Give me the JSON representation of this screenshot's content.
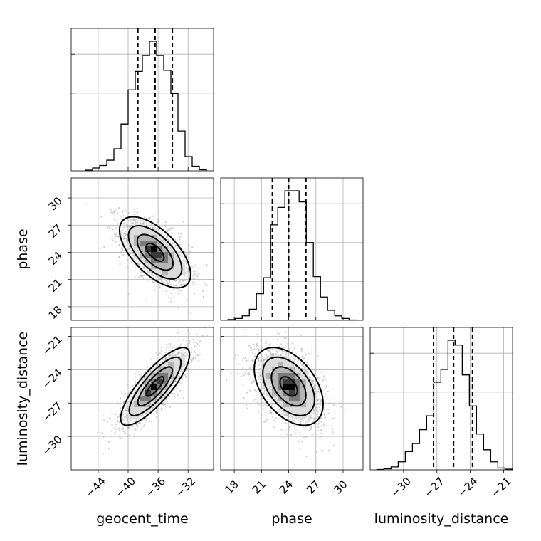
{
  "chart_data": {
    "type": "corner",
    "parameters": [
      "geocent_time",
      "phase",
      "luminosity_distance"
    ],
    "colors": {
      "line": "#000000",
      "grid": "#b0b0b0",
      "scatter": "#9a9a9a"
    },
    "grid": true,
    "ticks": {
      "geocent_time": [
        -44,
        -40,
        -36,
        -32
      ],
      "phase": [
        18,
        21,
        24,
        27,
        30
      ],
      "luminosity_distance": [
        -30,
        -27,
        -24,
        -21
      ]
    },
    "tick_labels": {
      "geocent_time": [
        "−44",
        "−40",
        "−36",
        "−32"
      ],
      "phase": [
        "18",
        "21",
        "24",
        "27",
        "30"
      ],
      "luminosity_distance": [
        "−30",
        "−27",
        "−24",
        "−21"
      ]
    },
    "ranges": {
      "geocent_time": [
        -47.6,
        -28.6
      ],
      "phase": [
        16.5,
        32.2
      ],
      "luminosity_distance": [
        -33.0,
        -20.2
      ]
    },
    "quantiles": {
      "geocent_time": [
        -38.7,
        -36.4,
        -34.1
      ],
      "phase": [
        22.2,
        24.0,
        25.9
      ],
      "luminosity_distance": [
        -27.3,
        -25.5,
        -23.8
      ]
    },
    "histograms": {
      "geocent_time": {
        "bin_edges": [
          -45.7,
          -44.75,
          -43.8,
          -42.85,
          -41.9,
          -40.95,
          -40.0,
          -39.05,
          -38.1,
          -37.15,
          -36.2,
          -35.25,
          -34.3,
          -33.35,
          -32.4,
          -31.45,
          -30.5,
          -29.55
        ],
        "counts": [
          2,
          8,
          15,
          30,
          62,
          132,
          228,
          280,
          325,
          365,
          325,
          283,
          218,
          112,
          40,
          13,
          3
        ]
      },
      "phase": {
        "bin_edges": [
          17.3,
          18.09,
          18.87,
          19.66,
          20.44,
          21.23,
          22.01,
          22.8,
          23.58,
          24.37,
          25.15,
          25.94,
          26.72,
          27.51,
          28.29,
          29.08,
          29.86,
          30.65,
          31.43
        ],
        "counts": [
          2,
          5,
          12,
          30,
          72,
          115,
          258,
          305,
          350,
          350,
          320,
          210,
          118,
          63,
          27,
          12,
          5,
          1
        ]
      },
      "luminosity_distance": {
        "bin_edges": [
          -32.4,
          -31.76,
          -31.12,
          -30.48,
          -29.84,
          -29.2,
          -28.56,
          -27.92,
          -27.28,
          -26.64,
          -26.0,
          -25.36,
          -24.72,
          -24.08,
          -23.44,
          -22.8,
          -22.16,
          -21.52,
          -20.88,
          -20.24
        ],
        "counts": [
          1,
          3,
          8,
          22,
          50,
          72,
          110,
          148,
          240,
          275,
          355,
          342,
          260,
          175,
          98,
          55,
          22,
          5,
          2
        ]
      }
    },
    "pairs": [
      {
        "x": "geocent_time",
        "y": "phase",
        "mean": [
          -36.4,
          24.0
        ],
        "std": [
          2.3,
          1.9
        ],
        "correlation": -0.6,
        "contour_levels_sigma": [
          0.5,
          1.0,
          1.5,
          2.0
        ]
      },
      {
        "x": "geocent_time",
        "y": "luminosity_distance",
        "mean": [
          -36.4,
          -25.5
        ],
        "std": [
          2.3,
          1.75
        ],
        "correlation": 0.82,
        "contour_levels_sigma": [
          0.5,
          1.0,
          1.5,
          2.0
        ]
      },
      {
        "x": "phase",
        "y": "luminosity_distance",
        "mean": [
          24.0,
          -25.5
        ],
        "std": [
          1.9,
          1.75
        ],
        "correlation": -0.45,
        "contour_levels_sigma": [
          0.5,
          1.0,
          1.5,
          2.0
        ]
      }
    ]
  }
}
